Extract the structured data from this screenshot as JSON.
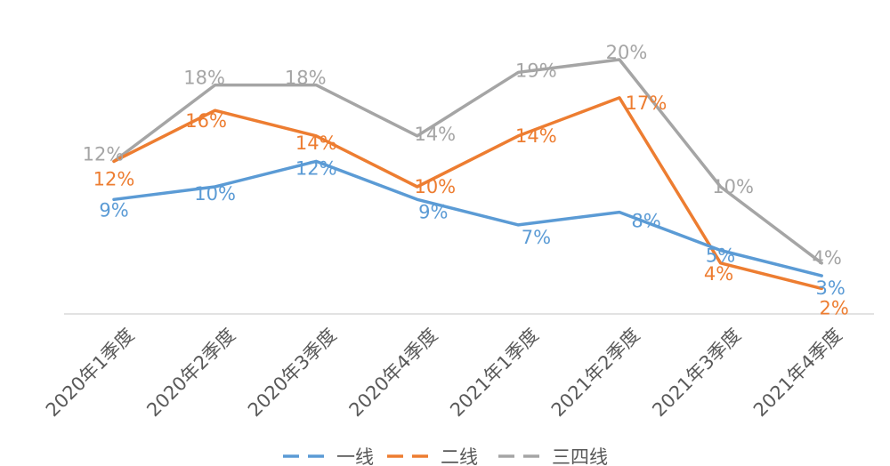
{
  "chart_data": {
    "type": "line",
    "categories": [
      "2020年1季度",
      "2020年2季度",
      "2020年3季度",
      "2020年4季度",
      "2021年1季度",
      "2021年2季度",
      "2021年3季度",
      "2021年4季度"
    ],
    "value_format": "percent",
    "series": [
      {
        "name": "一线",
        "color": "#5B9BD5",
        "values": [
          9,
          10,
          12,
          9,
          7,
          8,
          5,
          3
        ]
      },
      {
        "name": "二线",
        "color": "#ED7D31",
        "values": [
          12,
          16,
          14,
          10,
          14,
          17,
          4,
          2
        ]
      },
      {
        "name": "三四线",
        "color": "#A5A5A5",
        "values": [
          12,
          18,
          18,
          14,
          19,
          20,
          10,
          4
        ]
      }
    ],
    "ylim": [
      0,
      22
    ],
    "grid": false,
    "legend": "bottom"
  }
}
